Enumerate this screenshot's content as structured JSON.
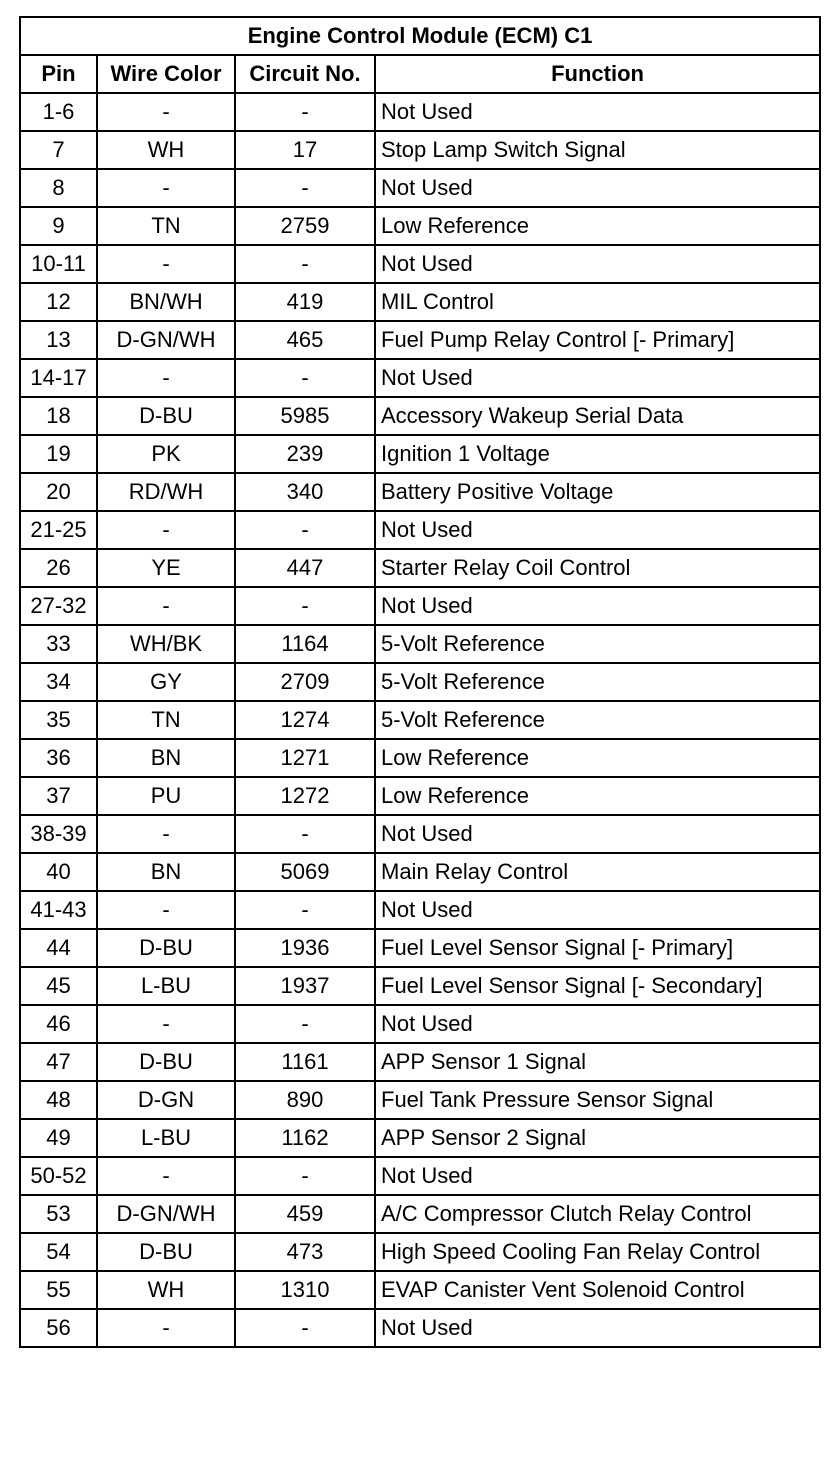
{
  "table": {
    "title": "Engine Control Module (ECM) C1",
    "columns": [
      "Pin",
      "Wire Color",
      "Circuit No.",
      "Function"
    ],
    "rows": [
      [
        "1-6",
        "-",
        "-",
        "Not Used"
      ],
      [
        "7",
        "WH",
        "17",
        "Stop Lamp Switch Signal"
      ],
      [
        "8",
        "-",
        "-",
        "Not Used"
      ],
      [
        "9",
        "TN",
        "2759",
        "Low Reference"
      ],
      [
        "10-11",
        "-",
        "-",
        "Not Used"
      ],
      [
        "12",
        "BN/WH",
        "419",
        "MIL Control"
      ],
      [
        "13",
        "D-GN/WH",
        "465",
        "Fuel Pump Relay Control [- Primary]"
      ],
      [
        "14-17",
        "-",
        "-",
        "Not Used"
      ],
      [
        "18",
        "D-BU",
        "5985",
        "Accessory Wakeup Serial Data"
      ],
      [
        "19",
        "PK",
        "239",
        "Ignition 1 Voltage"
      ],
      [
        "20",
        "RD/WH",
        "340",
        "Battery Positive Voltage"
      ],
      [
        "21-25",
        "-",
        "-",
        "Not Used"
      ],
      [
        "26",
        "YE",
        "447",
        "Starter Relay Coil Control"
      ],
      [
        "27-32",
        "-",
        "-",
        "Not Used"
      ],
      [
        "33",
        "WH/BK",
        "1164",
        "5-Volt Reference"
      ],
      [
        "34",
        "GY",
        "2709",
        "5-Volt Reference"
      ],
      [
        "35",
        "TN",
        "1274",
        "5-Volt Reference"
      ],
      [
        "36",
        "BN",
        "1271",
        "Low Reference"
      ],
      [
        "37",
        "PU",
        "1272",
        "Low Reference"
      ],
      [
        "38-39",
        "-",
        "-",
        "Not Used"
      ],
      [
        "40",
        "BN",
        "5069",
        "Main Relay Control"
      ],
      [
        "41-43",
        "-",
        "-",
        "Not Used"
      ],
      [
        "44",
        "D-BU",
        "1936",
        "Fuel Level Sensor Signal [- Primary]"
      ],
      [
        "45",
        "L-BU",
        "1937",
        "Fuel Level Sensor Signal [- Secondary]"
      ],
      [
        "46",
        "-",
        "-",
        "Not Used"
      ],
      [
        "47",
        "D-BU",
        "1161",
        "APP Sensor 1 Signal"
      ],
      [
        "48",
        "D-GN",
        "890",
        "Fuel Tank Pressure Sensor Signal"
      ],
      [
        "49",
        "L-BU",
        "1162",
        "APP Sensor 2 Signal"
      ],
      [
        "50-52",
        "-",
        "-",
        "Not Used"
      ],
      [
        "53",
        "D-GN/WH",
        "459",
        "A/C Compressor Clutch Relay Control"
      ],
      [
        "54",
        "D-BU",
        "473",
        "High Speed Cooling Fan Relay Control"
      ],
      [
        "55",
        "WH",
        "1310",
        "EVAP Canister Vent Solenoid Control"
      ],
      [
        "56",
        "-",
        "-",
        "Not Used"
      ]
    ]
  }
}
